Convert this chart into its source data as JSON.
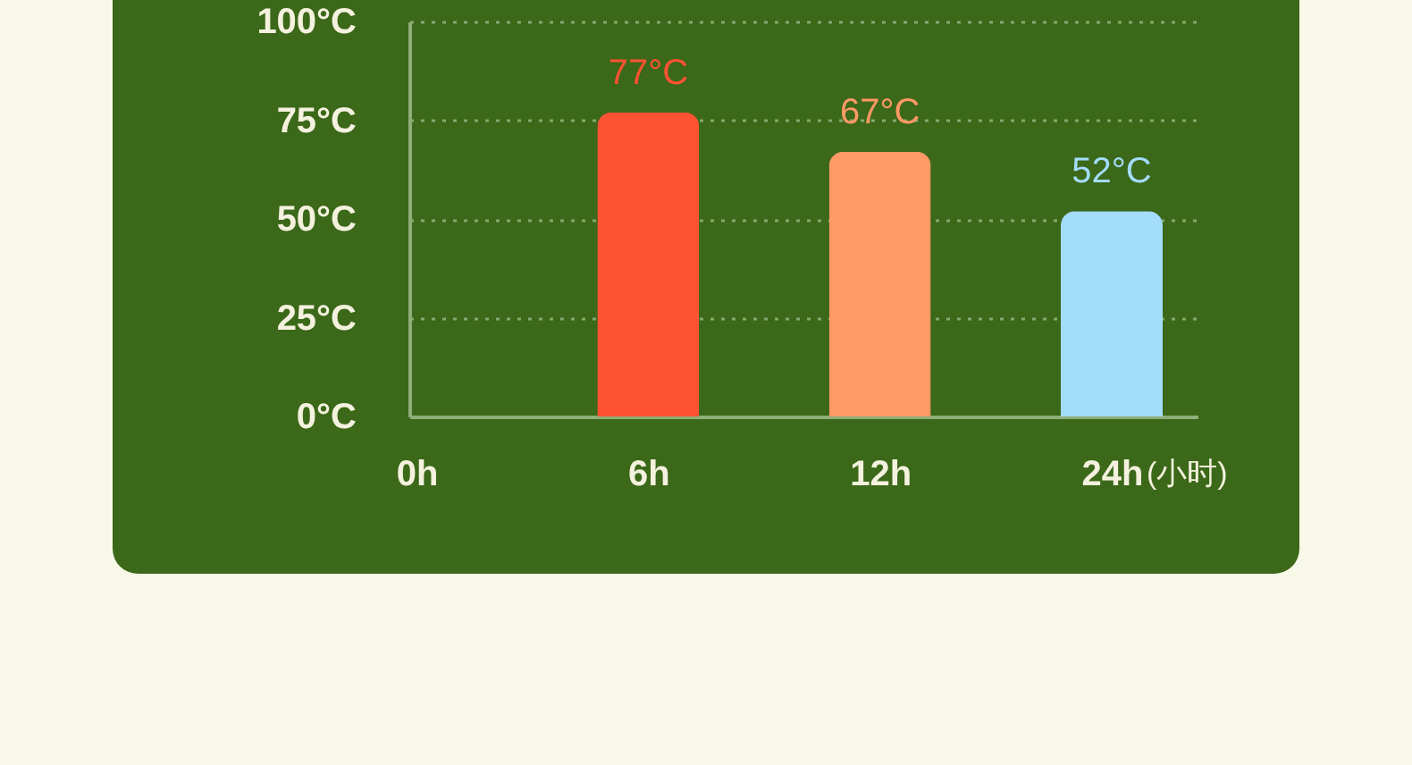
{
  "chart_data": {
    "type": "bar",
    "categories": [
      "0h",
      "6h",
      "12h",
      "24h"
    ],
    "xlabel": "(小时)",
    "values": [
      null,
      77,
      67,
      52
    ],
    "colors": [
      null,
      "#ff5233",
      "#ff9966",
      "#a4dcfb"
    ],
    "value_labels": [
      null,
      "77°C",
      "67°C",
      "52°C"
    ],
    "ylim": [
      0,
      100
    ],
    "yticks": [
      {
        "value": 0,
        "label": "0°C"
      },
      {
        "value": 25,
        "label": "25°C"
      },
      {
        "value": 50,
        "label": "50°C"
      },
      {
        "value": 75,
        "label": "75°C"
      },
      {
        "value": 100,
        "label": "100°C"
      }
    ],
    "grid": "y"
  }
}
